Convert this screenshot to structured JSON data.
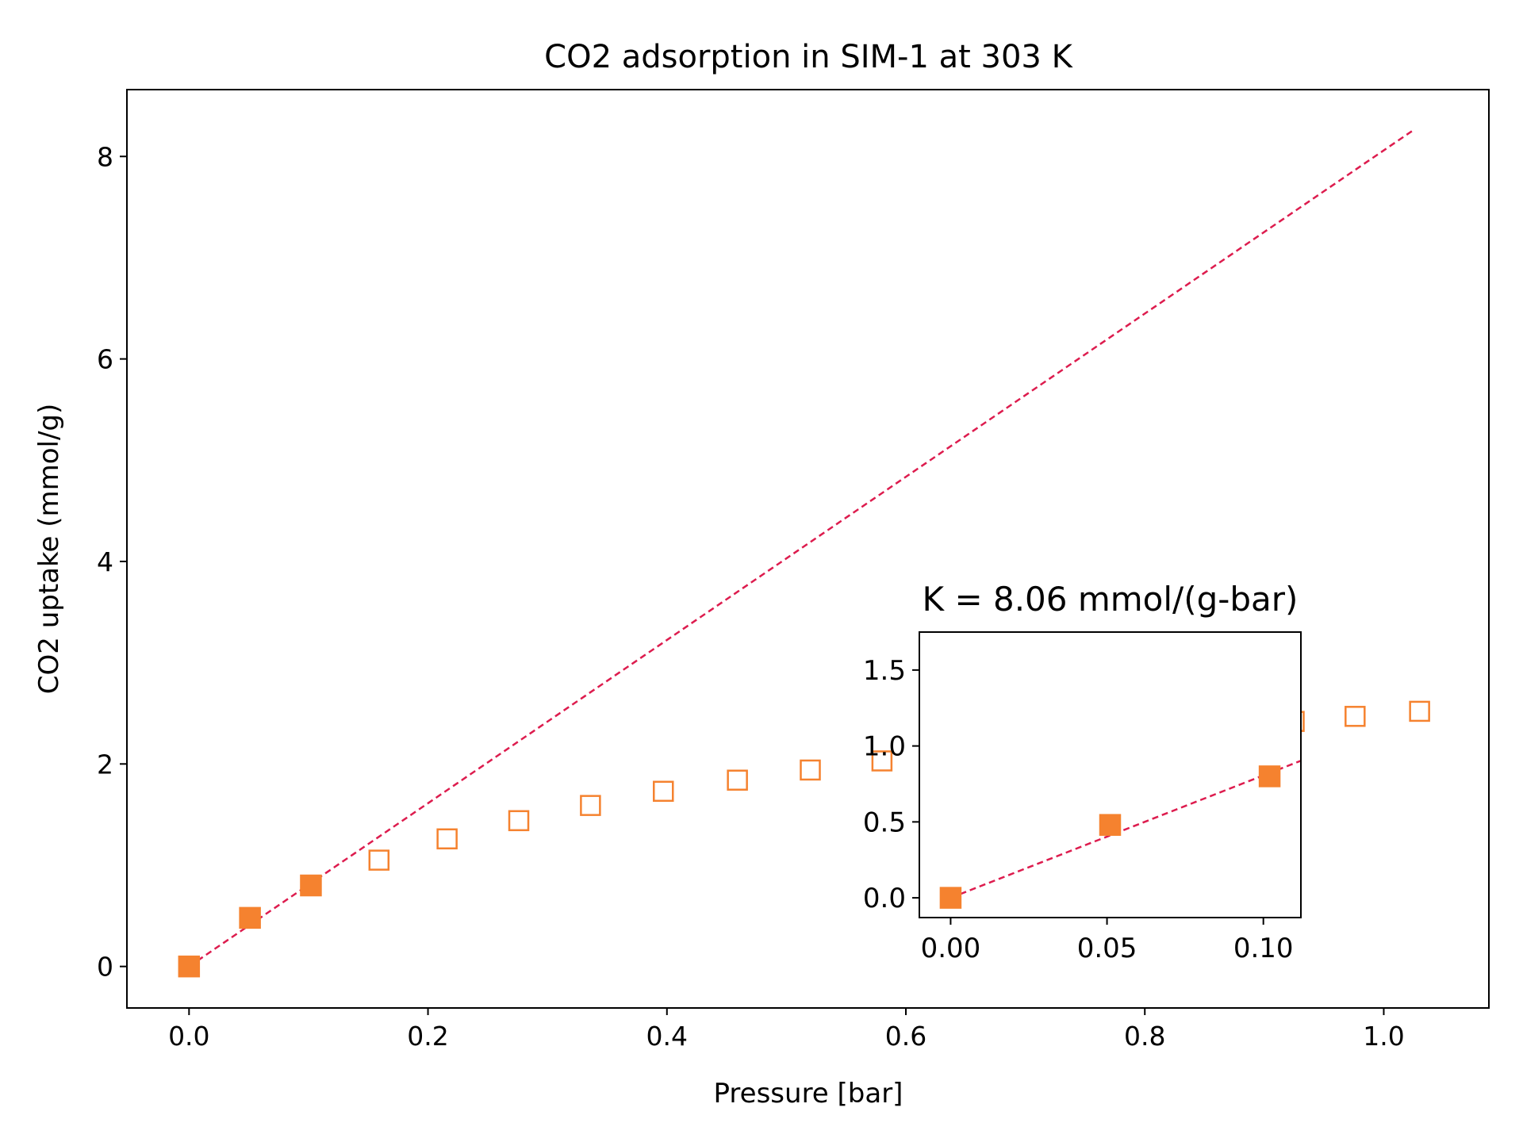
{
  "chart_data": {
    "type": "scatter",
    "title": "CO2 adsorption in SIM-1 at 303 K",
    "xlabel": "Pressure [bar]",
    "ylabel": "CO2 uptake (mmol/g)",
    "xlim": [
      -0.052,
      1.088
    ],
    "ylim": [
      -0.41,
      8.66
    ],
    "xticks": [
      0.0,
      0.2,
      0.4,
      0.6,
      0.8,
      1.0
    ],
    "xtick_labels": [
      "0.0",
      "0.2",
      "0.4",
      "0.6",
      "0.8",
      "1.0"
    ],
    "yticks": [
      0,
      2,
      4,
      6,
      8
    ],
    "ytick_labels": [
      "0",
      "2",
      "4",
      "6",
      "8"
    ],
    "grid": false,
    "colors": {
      "marker": "#f5822f",
      "fit_line": "#dd1c4e"
    },
    "series": [
      {
        "marker": "square-filled",
        "x": [
          0.0,
          0.051,
          0.102
        ],
        "y": [
          0.0,
          0.48,
          0.8
        ]
      },
      {
        "marker": "square-open",
        "x": [
          0.159,
          0.216,
          0.276,
          0.336,
          0.397,
          0.459,
          0.52,
          0.58,
          0.64,
          0.7,
          0.76,
          0.82,
          0.875,
          0.925,
          0.976,
          1.03
        ],
        "y": [
          1.05,
          1.26,
          1.44,
          1.59,
          1.73,
          1.84,
          1.94,
          2.03,
          2.11,
          2.19,
          2.24,
          2.29,
          2.33,
          2.42,
          2.47,
          2.52
        ]
      }
    ],
    "fit_line": {
      "style": "dashed",
      "slope": 8.06,
      "x": [
        0.0,
        1.025
      ]
    },
    "inset": {
      "title": "K = 8.06 mmol/(g-bar)",
      "xlim": [
        -0.01,
        0.112
      ],
      "ylim": [
        -0.13,
        1.75
      ],
      "xticks": [
        0.0,
        0.05,
        0.1
      ],
      "xtick_labels": [
        "0.00",
        "0.05",
        "0.10"
      ],
      "yticks": [
        0.0,
        0.5,
        1.0,
        1.5
      ],
      "ytick_labels": [
        "0.0",
        "0.5",
        "1.0",
        "1.5"
      ],
      "points": {
        "x": [
          0.0,
          0.051,
          0.102
        ],
        "y": [
          0.0,
          0.48,
          0.8
        ]
      },
      "fit_line": {
        "style": "dashed",
        "slope": 8.06,
        "x": [
          0.0,
          0.112
        ]
      }
    }
  }
}
